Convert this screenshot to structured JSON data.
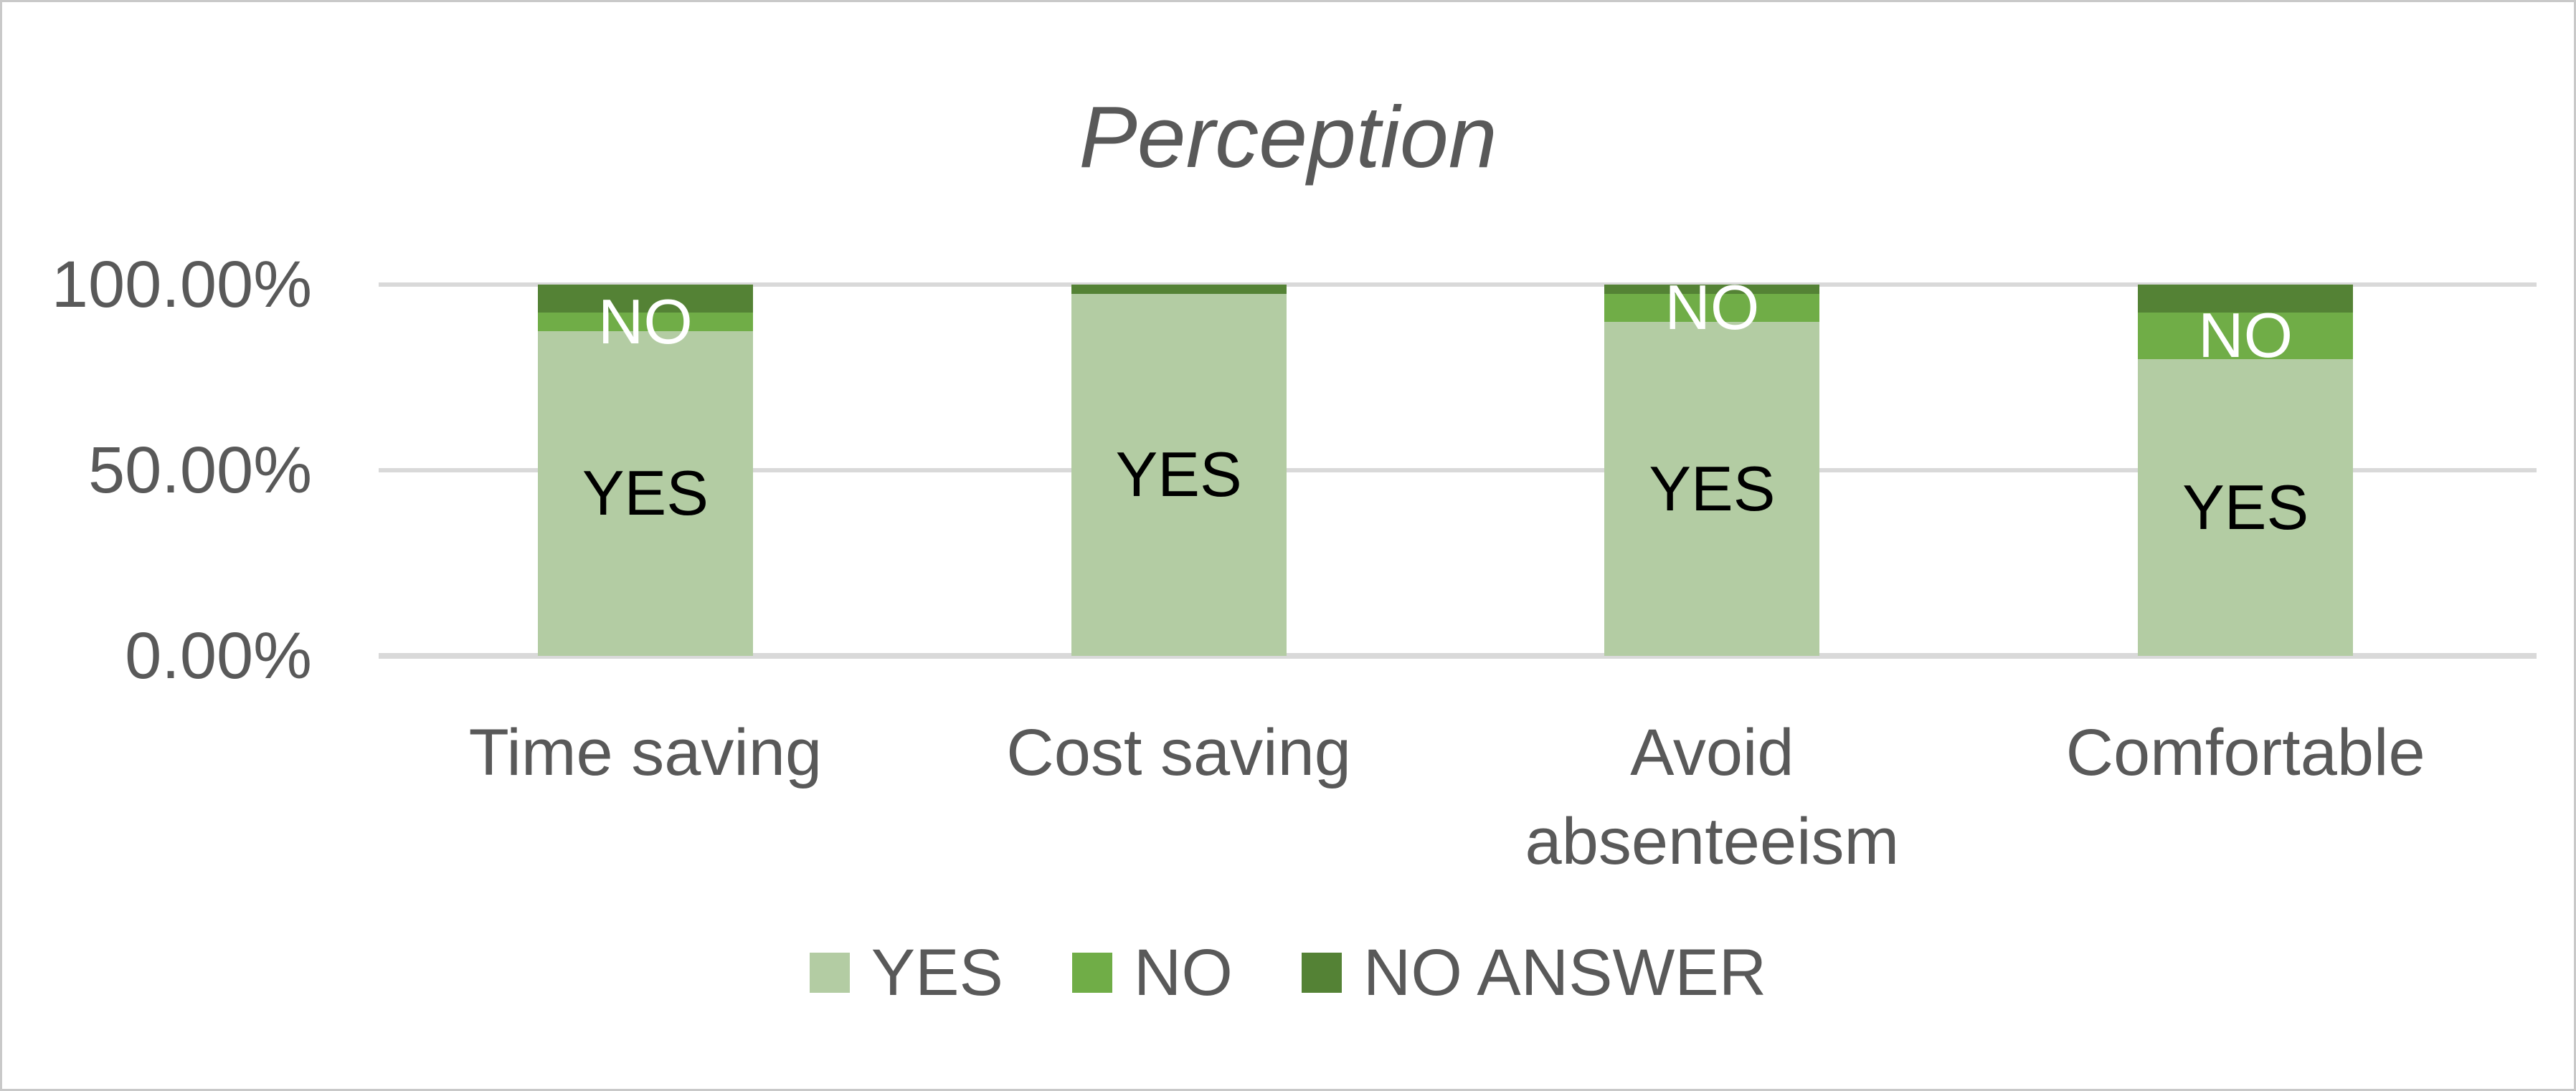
{
  "figure": {
    "background": "#ffffff",
    "border_color": "#c9c9c9",
    "text_color": "#595959",
    "gridline_color": "#d9d9d9"
  },
  "chart_data": {
    "type": "bar",
    "stacked": true,
    "stacked_unit": "percent",
    "title": "Perception",
    "categories": [
      "Time saving",
      "Cost saving",
      "Avoid absenteeism",
      "Comfortable"
    ],
    "series": [
      {
        "name": "YES",
        "color": "#b3cca3",
        "label_color": "#000000",
        "values": [
          87.5,
          97.5,
          90.0,
          80.0
        ]
      },
      {
        "name": "NO",
        "color": "#70ad47",
        "label_color": "#ffffff",
        "values": [
          5.0,
          0.0,
          7.5,
          12.5
        ]
      },
      {
        "name": "NO ANSWER",
        "color": "#548235",
        "label_color": "#ffffff",
        "values": [
          7.5,
          2.5,
          2.5,
          7.5
        ]
      }
    ],
    "data_labels_visible": {
      "YES": [
        true,
        true,
        true,
        true
      ],
      "NO": [
        true,
        false,
        true,
        true
      ],
      "NO ANSWER": [
        false,
        false,
        false,
        false
      ]
    },
    "y_axis": {
      "min": 0,
      "max": 100,
      "tick_labels": [
        "100.00%",
        "50.00%",
        "0.00%"
      ],
      "tick_values": [
        100,
        50,
        0
      ]
    },
    "grid": true,
    "legend": {
      "position": "bottom"
    }
  }
}
